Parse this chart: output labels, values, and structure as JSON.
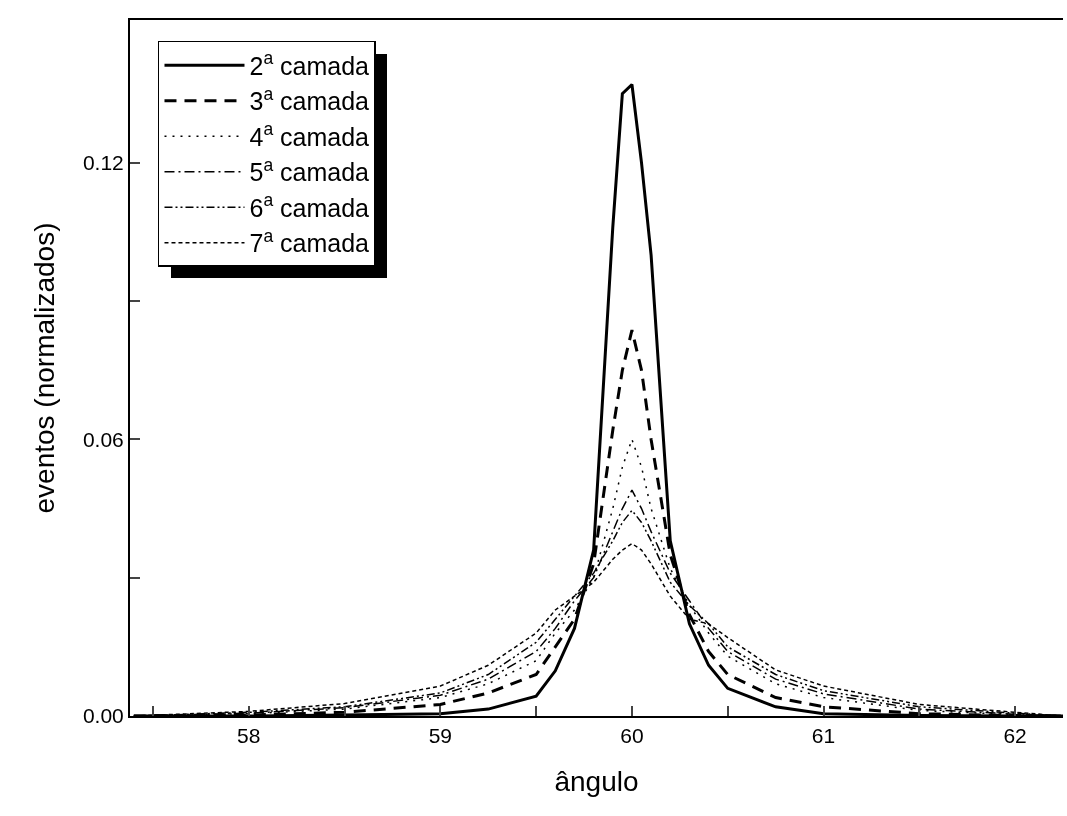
{
  "chart_data": {
    "type": "line",
    "xlabel": "ângulo",
    "ylabel": "eventos (normalizados)",
    "x": [
      57.4,
      58,
      58.5,
      59,
      59.25,
      59.5,
      59.6,
      59.7,
      59.8,
      59.9,
      59.95,
      60,
      60.05,
      60.1,
      60.2,
      60.3,
      60.4,
      60.5,
      60.75,
      61,
      61.5,
      62,
      62.25
    ],
    "xlim": [
      57.38,
      62.25
    ],
    "xticks": [
      {
        "value": 57.5,
        "label": null
      },
      58,
      {
        "value": 58.5,
        "label": null
      },
      59,
      {
        "value": 59.5,
        "label": null
      },
      60,
      {
        "value": 60.5,
        "label": null
      },
      61,
      {
        "value": 61.5,
        "label": null
      },
      62
    ],
    "ylim": [
      0,
      0.151
    ],
    "yticks": [
      {
        "value": 0,
        "label": "0.00"
      },
      {
        "value": 0.03,
        "label": null
      },
      0.06,
      {
        "value": 0.09,
        "label": null
      },
      0.12
    ],
    "legend": "top left",
    "grid": false,
    "marker": "none",
    "series": [
      {
        "name": "2$^{a}$ camada",
        "color": "#000000",
        "line_style": "solid",
        "values": [
          0,
          0,
          0.0002,
          0.0005,
          0.0015,
          0.0043,
          0.0098,
          0.019,
          0.036,
          0.106,
          0.135,
          0.137,
          0.12,
          0.1,
          0.038,
          0.02,
          0.011,
          0.006,
          0.002,
          0.0005,
          0.0001,
          0,
          0
        ]
      },
      {
        "name": "3$^{a}$ camada",
        "color": "#000000",
        "line_style": "dashed",
        "values": [
          0,
          0.0002,
          0.0008,
          0.0025,
          0.005,
          0.009,
          0.015,
          0.021,
          0.033,
          0.062,
          0.075,
          0.0837,
          0.075,
          0.06,
          0.035,
          0.022,
          0.014,
          0.009,
          0.004,
          0.002,
          0.0005,
          0.0001,
          0
        ]
      },
      {
        "name": "4$^{a}$ camada",
        "color": "#000000",
        "line_style": "dotted",
        "values": [
          0,
          0.0005,
          0.0015,
          0.004,
          0.007,
          0.012,
          0.018,
          0.023,
          0.03,
          0.045,
          0.054,
          0.06,
          0.054,
          0.045,
          0.032,
          0.024,
          0.018,
          0.013,
          0.007,
          0.004,
          0.0012,
          0.0003,
          0
        ]
      },
      {
        "name": "5$^{a}$ camada",
        "color": "#000000",
        "line_style": "dashdot",
        "values": [
          0,
          0.0006,
          0.0018,
          0.0045,
          0.008,
          0.014,
          0.019,
          0.025,
          0.03,
          0.04,
          0.045,
          0.049,
          0.045,
          0.04,
          0.031,
          0.025,
          0.019,
          0.014,
          0.008,
          0.0048,
          0.0015,
          0.0004,
          0
        ]
      },
      {
        "name": "6$^{a}$ camada",
        "color": "#000000",
        "line_style": "dashdotdot",
        "values": [
          0,
          0.0008,
          0.002,
          0.005,
          0.009,
          0.016,
          0.021,
          0.026,
          0.031,
          0.038,
          0.042,
          0.0446,
          0.042,
          0.038,
          0.029,
          0.024,
          0.02,
          0.015,
          0.009,
          0.0055,
          0.002,
          0.0006,
          0
        ]
      },
      {
        "name": "7$^{a}$ camada",
        "color": "#000000",
        "line_style": "shortdash",
        "values": [
          0,
          0.001,
          0.0027,
          0.0065,
          0.011,
          0.018,
          0.023,
          0.026,
          0.029,
          0.034,
          0.036,
          0.0374,
          0.036,
          0.033,
          0.026,
          0.021,
          0.02,
          0.017,
          0.01,
          0.0065,
          0.0025,
          0.0008,
          0
        ]
      }
    ]
  }
}
